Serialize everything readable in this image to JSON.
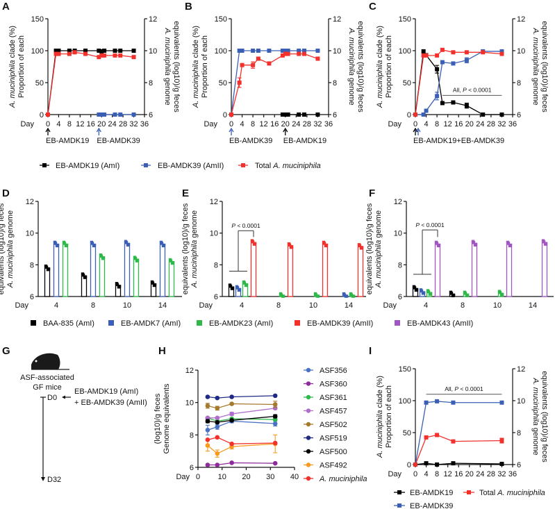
{
  "panel_labels": [
    "A",
    "B",
    "C",
    "D",
    "E",
    "F",
    "G",
    "H",
    "I"
  ],
  "chart_data": {
    "A": {
      "type": "line",
      "xlabel": "Day",
      "xlim": [
        0,
        36
      ],
      "xticks": [
        0,
        4,
        8,
        12,
        16,
        20,
        24,
        28,
        32,
        36
      ],
      "ylabel": [
        "Proportion of each",
        "A. muciniphila clade (%)"
      ],
      "ylim": [
        0,
        150
      ],
      "yticks": [
        0,
        50,
        100,
        150
      ],
      "y2label": [
        "A. muciniphila genome",
        "equivalents (log10)/g feces"
      ],
      "y2lim": [
        6,
        12
      ],
      "y2ticks": [
        6,
        8,
        10,
        12
      ],
      "series": [
        {
          "name": "EB-AMDK19 (AmI)",
          "color": "#000000",
          "axis": "left",
          "x": [
            0,
            3,
            4,
            8,
            10,
            14,
            19,
            20,
            21,
            25,
            27,
            32
          ],
          "y": [
            0,
            100,
            100,
            100,
            100,
            100,
            100,
            99,
            100,
            100,
            100,
            100
          ]
        },
        {
          "name": "EB-AMDK39 (AmII)",
          "color": "#3a5fb5",
          "axis": "left",
          "x": [
            19,
            20,
            21,
            25,
            27,
            32
          ],
          "y": [
            0,
            0,
            0,
            0,
            0,
            0
          ]
        },
        {
          "name": "Total A. muciniphila",
          "color": "#f2302c",
          "axis": "right",
          "x": [
            0,
            3,
            4,
            8,
            10,
            14,
            19,
            20,
            21,
            25,
            27,
            32
          ],
          "y": [
            6,
            9.8,
            9.8,
            9.8,
            9.9,
            9.8,
            9.6,
            9.7,
            9.7,
            9.7,
            9.7,
            9.6
          ]
        }
      ],
      "arrows": [
        {
          "day": 0,
          "color": "#000000",
          "label": "EB-AMDK19"
        },
        {
          "day": 19,
          "color": "#3a5fb5",
          "label": "EB-AMDK39"
        }
      ]
    },
    "B": {
      "type": "line",
      "xlabel": "Day",
      "xlim": [
        0,
        36
      ],
      "xticks": [
        0,
        4,
        8,
        12,
        16,
        20,
        24,
        28,
        32,
        36
      ],
      "ylabel": [
        "Proportion of each",
        "A. muciniphila clade (%)"
      ],
      "ylim": [
        0,
        150
      ],
      "yticks": [
        0,
        50,
        100,
        150
      ],
      "y2label": [
        "A. muciniphila genome",
        "equivalents (log10)/g feces"
      ],
      "y2lim": [
        6,
        12
      ],
      "y2ticks": [
        6,
        8,
        10,
        12
      ],
      "series": [
        {
          "name": "EB-AMDK39 (AmII)",
          "color": "#3a5fb5",
          "axis": "left",
          "x": [
            0,
            3,
            4,
            8,
            10,
            14,
            19,
            20,
            21,
            25,
            27,
            32
          ],
          "y": [
            0,
            100,
            100,
            100,
            100,
            100,
            100,
            100,
            100,
            100,
            100,
            100
          ]
        },
        {
          "name": "EB-AMDK19 (AmI)",
          "color": "#000000",
          "axis": "left",
          "x": [
            19,
            20,
            21,
            25,
            27,
            32
          ],
          "y": [
            0,
            0,
            0,
            0,
            0,
            0
          ]
        },
        {
          "name": "Total A. muciniphila",
          "color": "#f2302c",
          "axis": "right",
          "x": [
            0,
            3,
            4,
            8,
            10,
            14,
            19,
            20,
            21,
            25,
            27,
            32
          ],
          "y": [
            6,
            8.0,
            9.1,
            9.1,
            9.5,
            9.2,
            9.7,
            9.8,
            9.8,
            9.8,
            9.8,
            9.5
          ],
          "err": [
            0,
            0.3,
            0,
            0.2,
            0,
            0,
            0,
            0,
            0,
            0,
            0,
            0
          ]
        }
      ],
      "arrows": [
        {
          "day": 0,
          "color": "#3a5fb5",
          "label": "EB-AMDK39"
        },
        {
          "day": 20,
          "color": "#000000",
          "label": "EB-AMDK19"
        }
      ]
    },
    "C": {
      "type": "line",
      "xlabel": "Day",
      "xlim": [
        0,
        36
      ],
      "xticks": [
        0,
        4,
        8,
        12,
        16,
        20,
        24,
        28,
        32,
        36
      ],
      "ylabel": [
        "Proportion of each",
        "A. muciniphila clade (%)"
      ],
      "ylim": [
        0,
        150
      ],
      "yticks": [
        0,
        50,
        100,
        150
      ],
      "y2label": [
        "A. muciniphila genome",
        "equivalents (log10)/g feces"
      ],
      "y2lim": [
        6,
        12
      ],
      "y2ticks": [
        6,
        8,
        10,
        12
      ],
      "series": [
        {
          "name": "EB-AMDK19 (AmI)",
          "color": "#000000",
          "axis": "left",
          "x": [
            0,
            3,
            4,
            8,
            10,
            14,
            19,
            25,
            32
          ],
          "y": [
            0,
            99,
            93,
            71,
            18,
            19,
            14,
            0,
            0
          ],
          "err": [
            0,
            0,
            0,
            6,
            0,
            0,
            4,
            0,
            0
          ]
        },
        {
          "name": "EB-AMDK39 (AmII)",
          "color": "#3a5fb5",
          "axis": "left",
          "x": [
            0,
            3,
            4,
            8,
            10,
            14,
            19,
            25,
            32
          ],
          "y": [
            0,
            0,
            6,
            29,
            82,
            80,
            85,
            99,
            99
          ],
          "err": [
            0,
            0,
            0,
            6,
            0,
            0,
            4,
            0,
            0
          ]
        },
        {
          "name": "Total A. muciniphila",
          "color": "#f2302c",
          "axis": "right",
          "x": [
            0,
            3,
            4,
            8,
            10,
            14,
            19,
            25,
            32
          ],
          "y": [
            6,
            9.7,
            9.7,
            9.7,
            10.05,
            9.9,
            9.9,
            9.9,
            9.8
          ]
        }
      ],
      "arrows": [
        {
          "day": 0,
          "color": "#000000",
          "label": "EB-AMDK19+EB-AMDK39"
        },
        {
          "day": 0,
          "color": "#3a5fb5",
          "label": ""
        }
      ],
      "annotation": {
        "text": "All, P < 0.0001",
        "from_day": 10,
        "to_day": 32,
        "level": 30
      }
    },
    "legend_abc": [
      "EB-AMDK19 (AmI)",
      "EB-AMDK39 (AmII)",
      "Total A. muciniphila"
    ],
    "D": {
      "type": "bar",
      "xlabel": "Day",
      "categories": [
        "4",
        "8",
        "10",
        "14"
      ],
      "ylabel": [
        "A. muciniphila genome",
        "equivalents (log10)/g feces"
      ],
      "ylim": [
        6,
        12
      ],
      "yticks": [
        6,
        8,
        10,
        12
      ],
      "series": [
        {
          "name": "BAA-835 (AmI)",
          "color": "#000000",
          "values": [
            7.8,
            7.3,
            6.7,
            6.8
          ]
        },
        {
          "name": "EB-AMDK7 (AmI)",
          "color": "#3a5fb5",
          "values": [
            9.3,
            9.3,
            9.35,
            9.3
          ]
        },
        {
          "name": "EB-AMDK23 (AmI)",
          "color": "#2fb84a",
          "values": [
            9.3,
            8.5,
            8.35,
            8.2
          ]
        }
      ]
    },
    "E": {
      "type": "bar",
      "xlabel": "Day",
      "categories": [
        "4",
        "8",
        "10",
        "14"
      ],
      "ylabel": [
        "A. muciniphila genome",
        "equivalents (log10)/g feces"
      ],
      "ylim": [
        6,
        12
      ],
      "yticks": [
        6,
        8,
        10,
        12
      ],
      "series": [
        {
          "name": "BAA-835 (AmI)",
          "color": "#000000",
          "values": [
            6.6,
            null,
            null,
            null
          ]
        },
        {
          "name": "EB-AMDK7 (AmI)",
          "color": "#3a5fb5",
          "values": [
            6.5,
            null,
            null,
            6.05
          ]
        },
        {
          "name": "EB-AMDK23 (AmI)",
          "color": "#2fb84a",
          "values": [
            6.8,
            6.05,
            6.05,
            6.05
          ]
        },
        {
          "name": "EB-AMDK39 (AmII)",
          "color": "#f2302c",
          "values": [
            9.4,
            9.2,
            9.3,
            9.15
          ]
        }
      ],
      "annotation": {
        "text": "P < 0.0001",
        "low": 7.6,
        "high": 10.15
      }
    },
    "F": {
      "type": "bar",
      "xlabel": "Day",
      "categories": [
        "4",
        "8",
        "10",
        "14"
      ],
      "ylabel": [
        "A. muciniphila genome",
        "equivalents (log10)/g feces"
      ],
      "ylim": [
        6,
        12
      ],
      "yticks": [
        6,
        8,
        10,
        12
      ],
      "series": [
        {
          "name": "BAA-835 (AmI)",
          "color": "#000000",
          "values": [
            6.5,
            6.15,
            null,
            null
          ]
        },
        {
          "name": "EB-AMDK7 (AmI)",
          "color": "#3a5fb5",
          "values": [
            6.3,
            null,
            null,
            null
          ]
        },
        {
          "name": "EB-AMDK23 (AmI)",
          "color": "#2fb84a",
          "values": [
            6.25,
            6.15,
            6.2,
            null
          ]
        },
        {
          "name": "EB-AMDK43 (AmII)",
          "color": "#a155c0",
          "values": [
            9.3,
            9.35,
            9.3,
            9.4
          ]
        }
      ],
      "annotation": {
        "text": "P < 0.0001",
        "low": 7.4,
        "high": 10.2
      }
    },
    "legend_def": [
      {
        "name": "BAA-835 (AmI)",
        "color": "#000000"
      },
      {
        "name": "EB-AMDK7 (AmI)",
        "color": "#3a5fb5"
      },
      {
        "name": "EB-AMDK23 (AmI)",
        "color": "#2fb84a"
      },
      {
        "name": "EB-AMDK39 (AmII)",
        "color": "#f2302c"
      },
      {
        "name": "EB-AMDK43 (AmII)",
        "color": "#a155c0"
      }
    ],
    "H": {
      "type": "line",
      "xlabel": "Day",
      "xlim": [
        0,
        40
      ],
      "xticks": [
        0,
        10,
        20,
        30,
        40
      ],
      "ylabel": [
        "Genome equivalents",
        "(log10)/g feces"
      ],
      "ylim": [
        6,
        12
      ],
      "yticks": [
        6,
        8,
        10,
        12
      ],
      "x": [
        4,
        8,
        14,
        32
      ],
      "series": [
        {
          "name": "ASF356",
          "color": "#4a72c4",
          "y": [
            8.3,
            8.5,
            8.85,
            8.7
          ],
          "err": [
            0.3,
            0.15,
            0.1,
            0.15
          ]
        },
        {
          "name": "ASF360",
          "color": "#8e2a9c",
          "y": [
            6.15,
            6.15,
            6.28,
            6.25
          ]
        },
        {
          "name": "ASF361",
          "color": "#2fb84a",
          "y": [
            9.05,
            8.85,
            9.0,
            8.95
          ]
        },
        {
          "name": "ASF457",
          "color": "#b06ccb",
          "y": [
            9.05,
            9.05,
            9.3,
            9.65
          ],
          "err": [
            0.05,
            0.05,
            0.1,
            0.08
          ]
        },
        {
          "name": "ASF502",
          "color": "#a47a2c",
          "y": [
            9.8,
            9.65,
            9.92,
            9.88
          ],
          "err": [
            0.15,
            0.12,
            0.05,
            0.2
          ]
        },
        {
          "name": "ASF519",
          "color": "#1f2a85",
          "y": [
            10.35,
            10.28,
            10.35,
            10.42
          ]
        },
        {
          "name": "ASF500",
          "color": "#000000",
          "y": [
            8.85,
            8.78,
            8.9,
            9.15
          ],
          "err": [
            0.1,
            0.05,
            0.05,
            0.1
          ]
        },
        {
          "name": "ASF492",
          "color": "#f79a1e",
          "y": [
            7.35,
            6.85,
            7.28,
            7.45
          ],
          "err": [
            0.35,
            0.22,
            0.15,
            0.55
          ]
        },
        {
          "name": "A. muciniphila",
          "color": "#f2302c",
          "y": [
            7.7,
            7.85,
            7.45,
            7.5
          ]
        }
      ]
    },
    "I": {
      "type": "line",
      "xlabel": "Day",
      "xlim": [
        0,
        36
      ],
      "xticks": [
        0,
        4,
        8,
        12,
        16,
        20,
        24,
        28,
        32,
        36
      ],
      "ylabel": [
        "Proportion of each",
        "A. muciniphila clade (%)"
      ],
      "ylim": [
        0,
        150
      ],
      "yticks": [
        0,
        50,
        100,
        150
      ],
      "y2label": [
        "A. muciniphila genome",
        "equivalents (log10)/g feces"
      ],
      "y2lim": [
        6,
        12
      ],
      "y2ticks": [
        6,
        8,
        10,
        12
      ],
      "series": [
        {
          "name": "EB-AMDK19",
          "color": "#000000",
          "axis": "left",
          "x": [
            0,
            4,
            8,
            14,
            32
          ],
          "y": [
            0,
            2,
            0,
            2,
            1
          ]
        },
        {
          "name": "EB-AMDK39",
          "color": "#3a5fb5",
          "axis": "left",
          "x": [
            0,
            4,
            8,
            14,
            32
          ],
          "y": [
            0,
            97,
            99,
            97,
            97
          ]
        },
        {
          "name": "Total A. muciniphila",
          "color": "#f2302c",
          "axis": "right",
          "x": [
            0,
            4,
            8,
            14,
            32
          ],
          "y": [
            6,
            7.7,
            7.85,
            7.45,
            7.5
          ],
          "err": [
            0,
            0,
            0.08,
            0,
            0.15
          ]
        }
      ],
      "annotation": {
        "text": "All, P < 0.0001",
        "from_day": 4,
        "to_day": 32,
        "level": 110
      }
    }
  },
  "panel_g": {
    "mouse_label": [
      "ASF-associated",
      "GF mice"
    ],
    "start": "D0",
    "end": "D32",
    "treatment": [
      "EB-AMDK19 (AmI)",
      "+ EB-AMDK39 (AmII)"
    ]
  }
}
